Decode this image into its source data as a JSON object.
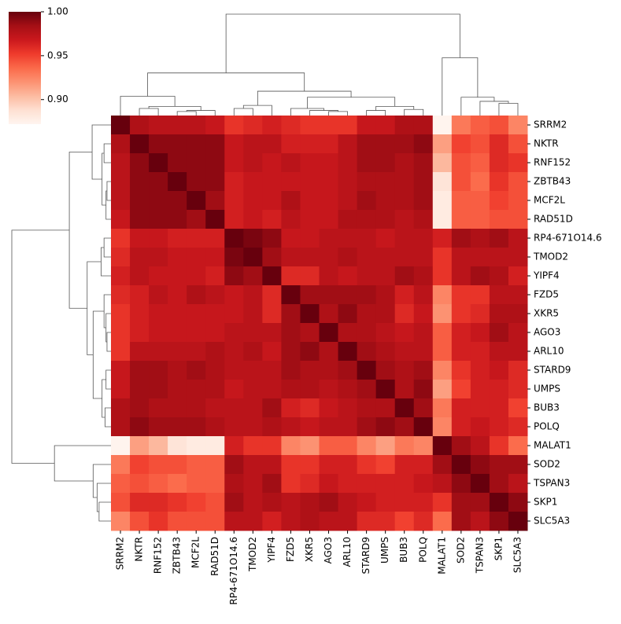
{
  "chart_data": {
    "type": "heatmap",
    "colormap": "Reds",
    "labels": [
      "SRRM2",
      "NKTR",
      "RNF152",
      "ZBTB43",
      "MCF2L",
      "RAD51D",
      "RP4-671O14.6",
      "TMOD2",
      "YIPF4",
      "FZD5",
      "XKR5",
      "AGO3",
      "ARL10",
      "STARD9",
      "UMPS",
      "BUB3",
      "POLQ",
      "MALAT1",
      "SOD2",
      "TSPAN3",
      "SKP1",
      "SLC5A3"
    ],
    "values": [
      [
        1,
        0.98,
        0.975,
        0.975,
        0.975,
        0.97,
        0.955,
        0.96,
        0.965,
        0.96,
        0.955,
        0.955,
        0.955,
        0.97,
        0.97,
        0.98,
        0.98,
        0.873,
        0.93,
        0.94,
        0.945,
        0.925
      ],
      [
        0.98,
        1,
        0.99,
        0.99,
        0.99,
        0.99,
        0.97,
        0.975,
        0.975,
        0.965,
        0.965,
        0.965,
        0.975,
        0.985,
        0.985,
        0.985,
        0.99,
        0.915,
        0.95,
        0.945,
        0.96,
        0.945
      ],
      [
        0.975,
        0.99,
        1,
        0.99,
        0.99,
        0.99,
        0.97,
        0.975,
        0.97,
        0.975,
        0.97,
        0.97,
        0.975,
        0.985,
        0.985,
        0.98,
        0.985,
        0.905,
        0.945,
        0.94,
        0.96,
        0.955
      ],
      [
        0.975,
        0.99,
        0.99,
        1,
        0.99,
        0.99,
        0.965,
        0.97,
        0.97,
        0.97,
        0.97,
        0.97,
        0.975,
        0.98,
        0.98,
        0.98,
        0.985,
        0.885,
        0.945,
        0.935,
        0.955,
        0.945
      ],
      [
        0.975,
        0.99,
        0.99,
        0.99,
        1,
        0.985,
        0.965,
        0.97,
        0.97,
        0.98,
        0.97,
        0.97,
        0.975,
        0.985,
        0.98,
        0.98,
        0.985,
        0.88,
        0.94,
        0.94,
        0.95,
        0.945
      ],
      [
        0.97,
        0.99,
        0.99,
        0.99,
        0.985,
        1,
        0.965,
        0.97,
        0.965,
        0.975,
        0.97,
        0.97,
        0.98,
        0.98,
        0.98,
        0.975,
        0.98,
        0.88,
        0.94,
        0.94,
        0.945,
        0.945
      ],
      [
        0.955,
        0.97,
        0.97,
        0.965,
        0.965,
        0.965,
        1,
        0.995,
        0.99,
        0.97,
        0.97,
        0.975,
        0.975,
        0.975,
        0.97,
        0.975,
        0.975,
        0.965,
        0.985,
        0.98,
        0.985,
        0.975
      ],
      [
        0.96,
        0.975,
        0.975,
        0.97,
        0.97,
        0.97,
        0.995,
        1,
        0.985,
        0.975,
        0.975,
        0.975,
        0.98,
        0.975,
        0.975,
        0.975,
        0.975,
        0.955,
        0.975,
        0.975,
        0.975,
        0.975
      ],
      [
        0.965,
        0.975,
        0.97,
        0.97,
        0.97,
        0.965,
        0.99,
        0.985,
        1,
        0.96,
        0.96,
        0.975,
        0.97,
        0.975,
        0.975,
        0.985,
        0.98,
        0.955,
        0.975,
        0.985,
        0.98,
        0.965
      ],
      [
        0.96,
        0.965,
        0.975,
        0.97,
        0.98,
        0.975,
        0.97,
        0.975,
        0.96,
        1,
        0.985,
        0.985,
        0.985,
        0.985,
        0.98,
        0.965,
        0.975,
        0.925,
        0.955,
        0.955,
        0.975,
        0.975
      ],
      [
        0.955,
        0.965,
        0.97,
        0.97,
        0.97,
        0.97,
        0.97,
        0.975,
        0.96,
        0.985,
        1,
        0.98,
        0.99,
        0.98,
        0.98,
        0.96,
        0.97,
        0.92,
        0.955,
        0.96,
        0.98,
        0.98
      ],
      [
        0.955,
        0.965,
        0.97,
        0.97,
        0.97,
        0.97,
        0.975,
        0.975,
        0.975,
        0.985,
        0.98,
        1,
        0.98,
        0.98,
        0.975,
        0.97,
        0.975,
        0.94,
        0.965,
        0.97,
        0.985,
        0.975
      ],
      [
        0.955,
        0.975,
        0.975,
        0.975,
        0.975,
        0.98,
        0.975,
        0.98,
        0.97,
        0.985,
        0.99,
        0.98,
        1,
        0.985,
        0.98,
        0.975,
        0.975,
        0.94,
        0.965,
        0.965,
        0.975,
        0.975
      ],
      [
        0.97,
        0.985,
        0.985,
        0.98,
        0.985,
        0.98,
        0.975,
        0.975,
        0.975,
        0.985,
        0.98,
        0.98,
        0.985,
        1,
        0.985,
        0.98,
        0.985,
        0.925,
        0.955,
        0.965,
        0.97,
        0.96
      ],
      [
        0.97,
        0.985,
        0.985,
        0.98,
        0.98,
        0.98,
        0.97,
        0.975,
        0.975,
        0.98,
        0.98,
        0.975,
        0.98,
        0.985,
        1,
        0.98,
        0.99,
        0.915,
        0.95,
        0.965,
        0.965,
        0.96
      ],
      [
        0.98,
        0.985,
        0.98,
        0.98,
        0.98,
        0.975,
        0.975,
        0.975,
        0.985,
        0.965,
        0.96,
        0.97,
        0.975,
        0.98,
        0.98,
        1,
        0.985,
        0.93,
        0.965,
        0.965,
        0.965,
        0.95
      ],
      [
        0.98,
        0.99,
        0.985,
        0.985,
        0.985,
        0.98,
        0.975,
        0.975,
        0.98,
        0.975,
        0.97,
        0.975,
        0.975,
        0.985,
        0.99,
        0.985,
        1,
        0.925,
        0.965,
        0.97,
        0.965,
        0.96
      ],
      [
        0.873,
        0.915,
        0.905,
        0.885,
        0.88,
        0.88,
        0.965,
        0.955,
        0.955,
        0.925,
        0.92,
        0.94,
        0.94,
        0.925,
        0.915,
        0.93,
        0.925,
        1,
        0.985,
        0.975,
        0.955,
        0.935
      ],
      [
        0.93,
        0.95,
        0.945,
        0.945,
        0.94,
        0.94,
        0.985,
        0.975,
        0.975,
        0.955,
        0.955,
        0.965,
        0.965,
        0.955,
        0.95,
        0.965,
        0.965,
        0.985,
        1,
        0.99,
        0.985,
        0.985
      ],
      [
        0.94,
        0.945,
        0.94,
        0.935,
        0.94,
        0.94,
        0.98,
        0.975,
        0.985,
        0.955,
        0.96,
        0.97,
        0.965,
        0.965,
        0.965,
        0.965,
        0.97,
        0.975,
        0.99,
        1,
        0.985,
        0.975
      ],
      [
        0.945,
        0.96,
        0.96,
        0.955,
        0.95,
        0.945,
        0.985,
        0.975,
        0.98,
        0.975,
        0.98,
        0.985,
        0.975,
        0.97,
        0.965,
        0.965,
        0.965,
        0.955,
        0.985,
        0.985,
        1,
        0.99
      ],
      [
        0.925,
        0.945,
        0.955,
        0.945,
        0.945,
        0.945,
        0.975,
        0.975,
        0.965,
        0.975,
        0.98,
        0.975,
        0.975,
        0.96,
        0.96,
        0.95,
        0.96,
        0.935,
        0.985,
        0.975,
        0.99,
        1
      ]
    ],
    "clim": [
      0.872,
      1.0
    ],
    "colorbar_ticks": [
      {
        "value": 0.9,
        "label": "0.90"
      },
      {
        "value": 0.95,
        "label": "0.95"
      },
      {
        "value": 1.0,
        "label": "1.00"
      }
    ]
  }
}
